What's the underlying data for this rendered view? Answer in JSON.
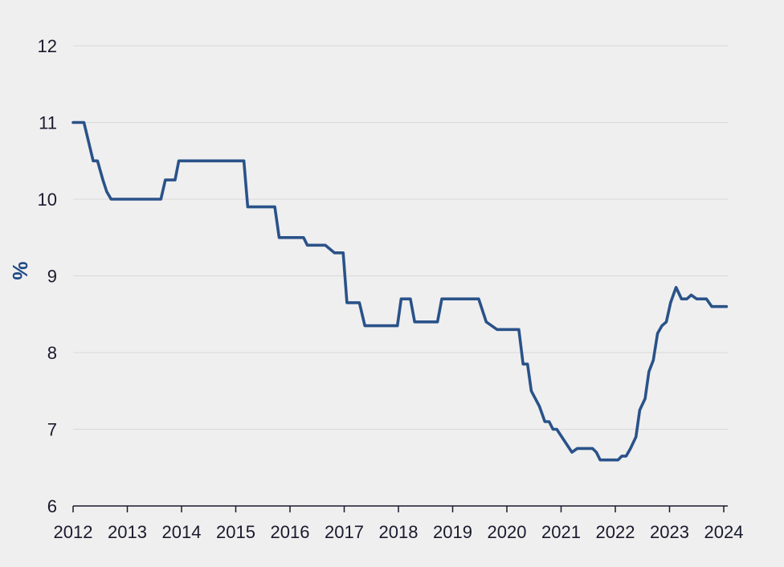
{
  "chart_data": {
    "type": "line",
    "title": "",
    "xlabel": "",
    "ylabel": "%",
    "xlim": [
      2012,
      2024
    ],
    "ylim": [
      6,
      12
    ],
    "grid": true,
    "line_color": "#2a5289",
    "x_ticks": [
      "2012",
      "2013",
      "2014",
      "2015",
      "2016",
      "2017",
      "2018",
      "2019",
      "2020",
      "2021",
      "2022",
      "2023",
      "2024"
    ],
    "y_ticks": [
      "6",
      "7",
      "8",
      "9",
      "10",
      "11",
      "12"
    ],
    "series": [
      {
        "points": [
          [
            2012.0,
            11.0
          ],
          [
            2012.2,
            11.0
          ],
          [
            2012.37,
            10.5
          ],
          [
            2012.45,
            10.5
          ],
          [
            2012.55,
            10.25
          ],
          [
            2012.62,
            10.1
          ],
          [
            2012.7,
            10.0
          ],
          [
            2013.0,
            10.0
          ],
          [
            2013.62,
            10.0
          ],
          [
            2013.7,
            10.25
          ],
          [
            2013.88,
            10.25
          ],
          [
            2013.95,
            10.5
          ],
          [
            2014.5,
            10.5
          ],
          [
            2015.0,
            10.5
          ],
          [
            2015.15,
            10.5
          ],
          [
            2015.22,
            9.9
          ],
          [
            2015.72,
            9.9
          ],
          [
            2015.8,
            9.5
          ],
          [
            2016.25,
            9.5
          ],
          [
            2016.32,
            9.4
          ],
          [
            2016.65,
            9.4
          ],
          [
            2016.82,
            9.3
          ],
          [
            2016.98,
            9.3
          ],
          [
            2017.05,
            8.65
          ],
          [
            2017.28,
            8.65
          ],
          [
            2017.38,
            8.35
          ],
          [
            2017.98,
            8.35
          ],
          [
            2018.05,
            8.7
          ],
          [
            2018.22,
            8.7
          ],
          [
            2018.3,
            8.4
          ],
          [
            2018.72,
            8.4
          ],
          [
            2018.8,
            8.7
          ],
          [
            2019.48,
            8.7
          ],
          [
            2019.62,
            8.4
          ],
          [
            2019.82,
            8.3
          ],
          [
            2020.22,
            8.3
          ],
          [
            2020.3,
            7.85
          ],
          [
            2020.38,
            7.85
          ],
          [
            2020.45,
            7.5
          ],
          [
            2020.6,
            7.3
          ],
          [
            2020.7,
            7.1
          ],
          [
            2020.78,
            7.1
          ],
          [
            2020.85,
            7.0
          ],
          [
            2020.92,
            7.0
          ],
          [
            2021.2,
            6.7
          ],
          [
            2021.3,
            6.75
          ],
          [
            2021.58,
            6.75
          ],
          [
            2021.65,
            6.7
          ],
          [
            2021.72,
            6.6
          ],
          [
            2022.05,
            6.6
          ],
          [
            2022.12,
            6.65
          ],
          [
            2022.2,
            6.65
          ],
          [
            2022.28,
            6.75
          ],
          [
            2022.38,
            6.9
          ],
          [
            2022.45,
            7.25
          ],
          [
            2022.55,
            7.4
          ],
          [
            2022.62,
            7.75
          ],
          [
            2022.7,
            7.9
          ],
          [
            2022.78,
            8.25
          ],
          [
            2022.86,
            8.35
          ],
          [
            2022.94,
            8.4
          ],
          [
            2023.02,
            8.65
          ],
          [
            2023.12,
            8.85
          ],
          [
            2023.22,
            8.7
          ],
          [
            2023.32,
            8.7
          ],
          [
            2023.4,
            8.75
          ],
          [
            2023.5,
            8.7
          ],
          [
            2023.68,
            8.7
          ],
          [
            2023.78,
            8.6
          ],
          [
            2024.0,
            8.6
          ],
          [
            2024.05,
            8.6
          ]
        ]
      }
    ]
  }
}
